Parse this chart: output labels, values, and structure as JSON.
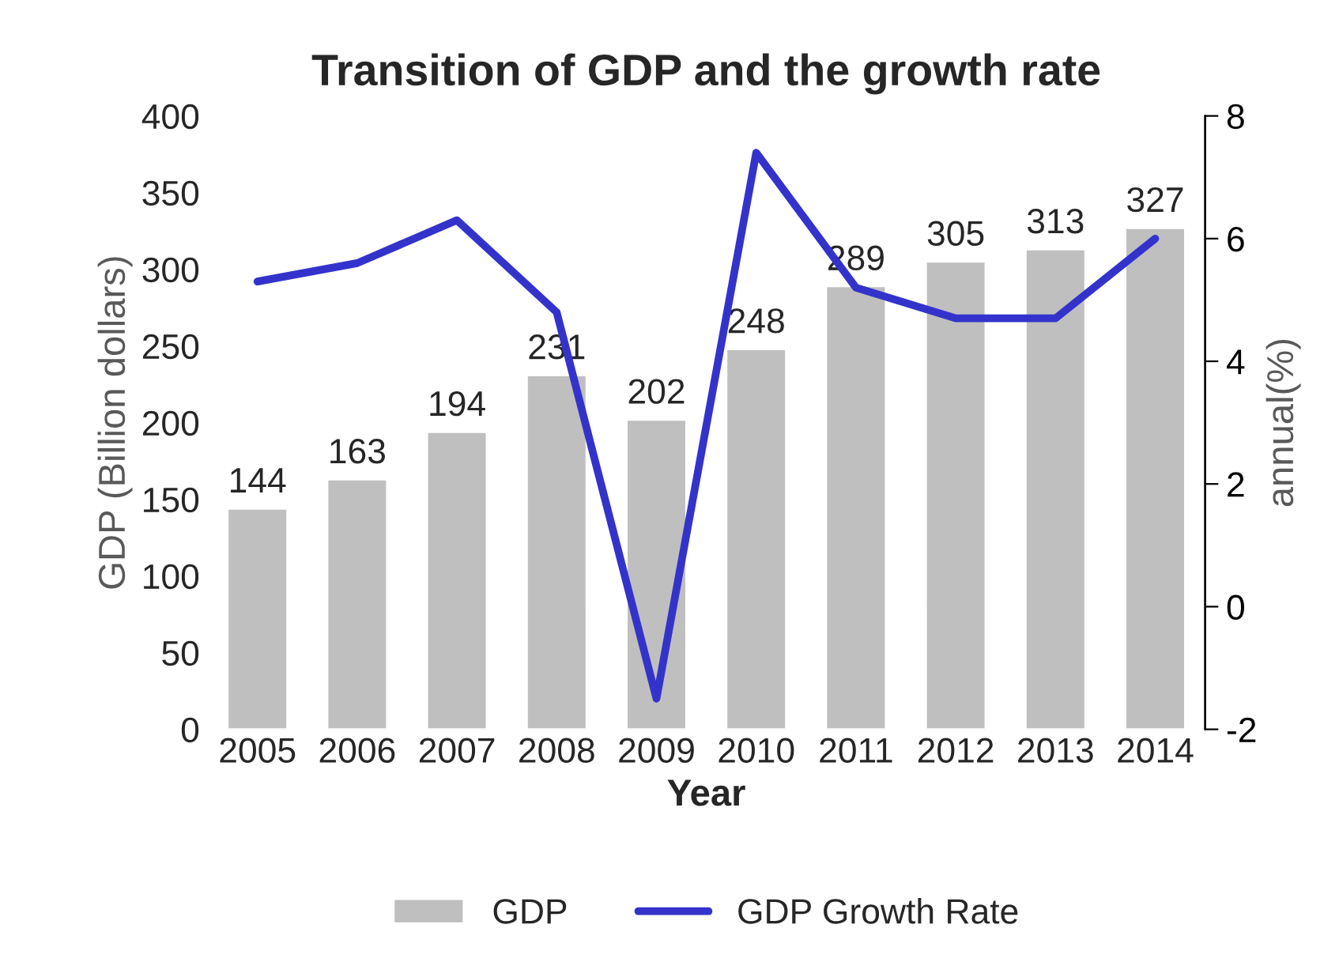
{
  "chart_data": {
    "type": "bar",
    "title": "Transition of GDP and the growth rate",
    "xlabel": "Year",
    "ylabel": "GDP (Billion dollars)",
    "y2label": "annual(%)",
    "categories": [
      "2005",
      "2006",
      "2007",
      "2008",
      "2009",
      "2010",
      "2011",
      "2012",
      "2013",
      "2014"
    ],
    "series": [
      {
        "name": "GDP",
        "color": "#bfbfbf",
        "values": [
          144,
          163,
          194,
          231,
          202,
          248,
          289,
          305,
          313,
          327
        ],
        "value_labels": [
          "144",
          "163",
          "194",
          "231",
          "202",
          "248",
          "289",
          "305",
          "313",
          "327"
        ]
      },
      {
        "name": "GDP Growth Rate",
        "type": "line",
        "axis": "y2",
        "color": "#3333cc",
        "values": [
          5.3,
          5.6,
          6.3,
          4.8,
          -1.5,
          7.4,
          5.2,
          4.7,
          4.7,
          6.0
        ]
      }
    ],
    "ylim": [
      0,
      400
    ],
    "yticks": [
      0,
      50,
      100,
      150,
      200,
      250,
      300,
      350,
      400
    ],
    "y2lim": [
      -2,
      8
    ],
    "y2ticks": [
      -2,
      0,
      2,
      4,
      6,
      8
    ],
    "grid": false,
    "legend": "bottom",
    "marker": "none",
    "line_style": "solid"
  }
}
